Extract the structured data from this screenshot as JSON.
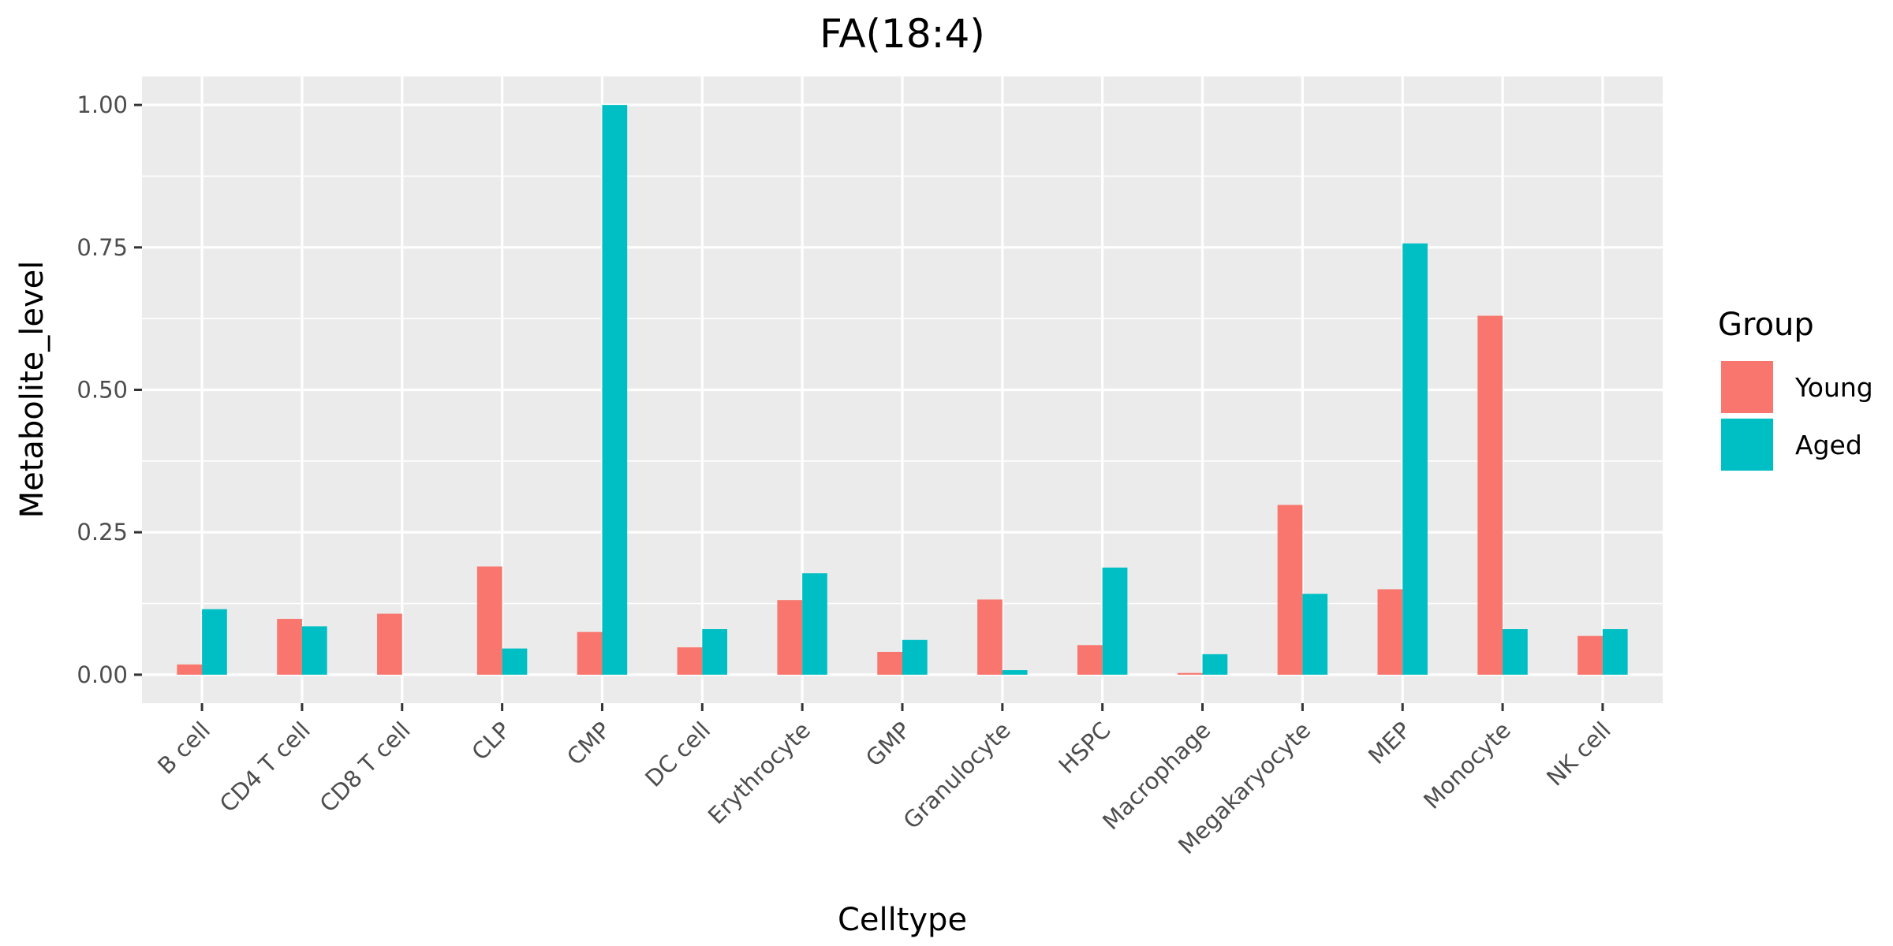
{
  "chart_data": {
    "type": "bar",
    "title": "FA(18:4)",
    "xlabel": "Celltype",
    "ylabel": "Metabolite_level",
    "ylim": [
      -0.05,
      1.05
    ],
    "yticks": [
      0.0,
      0.25,
      0.5,
      0.75,
      1.0
    ],
    "ytick_labels": [
      "0.00",
      "0.25",
      "0.50",
      "0.75",
      "1.00"
    ],
    "grid": true,
    "legend": {
      "title": "Group",
      "position": "right"
    },
    "categories": [
      "B cell",
      "CD4 T cell",
      "CD8 T cell",
      "CLP",
      "CMP",
      "DC cell",
      "Erythrocyte",
      "GMP",
      "Granulocyte",
      "HSPC",
      "Macrophage",
      "Megakaryocyte",
      "MEP",
      "Monocyte",
      "NK cell"
    ],
    "series": [
      {
        "name": "Young",
        "color": "#F8766D",
        "values": [
          0.018,
          0.098,
          0.107,
          0.19,
          0.075,
          0.048,
          0.131,
          0.04,
          0.132,
          0.052,
          0.003,
          0.298,
          0.15,
          0.63,
          0.068
        ]
      },
      {
        "name": "Aged",
        "color": "#00BFC4",
        "values": [
          0.115,
          0.085,
          0.0,
          0.046,
          1.0,
          0.08,
          0.178,
          0.061,
          0.008,
          0.188,
          0.036,
          0.142,
          0.757,
          0.08,
          0.08
        ]
      }
    ]
  }
}
